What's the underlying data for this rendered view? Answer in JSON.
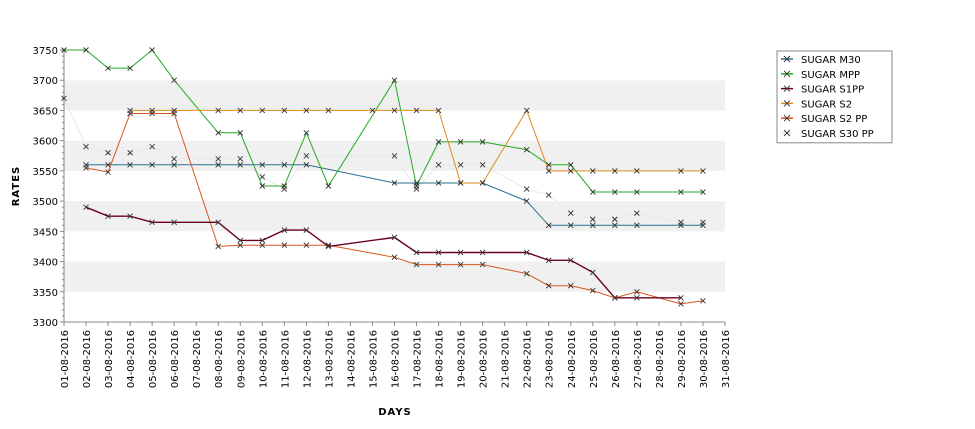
{
  "chart_data": {
    "type": "line",
    "xlabel": "DAYS",
    "ylabel": "RATES",
    "ylim": [
      3300,
      3750
    ],
    "y_ticks": [
      3300,
      3350,
      3400,
      3450,
      3500,
      3550,
      3600,
      3650,
      3700,
      3750
    ],
    "x_ticks": [
      "01-08-2016",
      "02-08-2016",
      "03-08-2016",
      "04-08-2016",
      "05-08-2016",
      "06-08-2016",
      "07-08-2016",
      "08-08-2016",
      "09-08-2016",
      "10-08-2016",
      "11-08-2016",
      "12-08-2016",
      "13-08-2016",
      "14-08-2016",
      "15-08-2016",
      "16-08-2016",
      "17-08-2016",
      "18-08-2016",
      "19-08-2016",
      "20-08-2016",
      "21-08-2016",
      "22-08-2016",
      "23-08-2016",
      "24-08-2016",
      "25-08-2016",
      "26-08-2016",
      "27-08-2016",
      "28-08-2016",
      "29-08-2016",
      "30-08-2016",
      "31-08-2016"
    ],
    "grid": "alternating horizontal bands",
    "legend": "top-right",
    "series": [
      {
        "name": "SUGAR M30",
        "color": "#2b6f8f",
        "points": [
          [
            2,
            3560
          ],
          [
            3,
            3560
          ],
          [
            4,
            3560
          ],
          [
            5,
            3560
          ],
          [
            6,
            3560
          ],
          [
            8,
            3560
          ],
          [
            9,
            3560
          ],
          [
            10,
            3560
          ],
          [
            11,
            3560
          ],
          [
            12,
            3560
          ],
          [
            16,
            3530
          ],
          [
            17,
            3530
          ],
          [
            18,
            3530
          ],
          [
            19,
            3530
          ],
          [
            20,
            3530
          ],
          [
            22,
            3500
          ],
          [
            23,
            3460
          ],
          [
            24,
            3460
          ],
          [
            25,
            3460
          ],
          [
            26,
            3460
          ],
          [
            27,
            3460
          ],
          [
            29,
            3460
          ],
          [
            30,
            3460
          ]
        ]
      },
      {
        "name": "SUGAR MPP",
        "color": "#22aa22",
        "points": [
          [
            1,
            3750
          ],
          [
            2,
            3750
          ],
          [
            3,
            3720
          ],
          [
            4,
            3720
          ],
          [
            5,
            3750
          ],
          [
            6,
            3700
          ],
          [
            8,
            3613
          ],
          [
            9,
            3613
          ],
          [
            10,
            3525
          ],
          [
            11,
            3525
          ],
          [
            12,
            3613
          ],
          [
            13,
            3525
          ],
          [
            16,
            3700
          ],
          [
            17,
            3525
          ],
          [
            18,
            3598
          ],
          [
            19,
            3598
          ],
          [
            20,
            3598
          ],
          [
            22,
            3585
          ],
          [
            23,
            3560
          ],
          [
            24,
            3560
          ],
          [
            25,
            3515
          ],
          [
            26,
            3515
          ],
          [
            27,
            3515
          ],
          [
            29,
            3515
          ],
          [
            30,
            3515
          ]
        ]
      },
      {
        "name": "SUGAR S1PP",
        "color": "#6b0020",
        "points": [
          [
            2,
            3490
          ],
          [
            3,
            3475
          ],
          [
            4,
            3475
          ],
          [
            5,
            3465
          ],
          [
            6,
            3465
          ],
          [
            8,
            3465
          ],
          [
            9,
            3435
          ],
          [
            10,
            3435
          ],
          [
            11,
            3452
          ],
          [
            12,
            3452
          ],
          [
            13,
            3425
          ],
          [
            16,
            3440
          ],
          [
            17,
            3415
          ],
          [
            18,
            3415
          ],
          [
            19,
            3415
          ],
          [
            20,
            3415
          ],
          [
            22,
            3415
          ],
          [
            23,
            3402
          ],
          [
            24,
            3402
          ],
          [
            25,
            3382
          ],
          [
            26,
            3340
          ],
          [
            27,
            3340
          ],
          [
            29,
            3340
          ]
        ]
      },
      {
        "name": "SUGAR S2",
        "color": "#e08a1e",
        "points": [
          [
            4,
            3650
          ],
          [
            5,
            3650
          ],
          [
            6,
            3650
          ],
          [
            8,
            3650
          ],
          [
            9,
            3650
          ],
          [
            10,
            3650
          ],
          [
            11,
            3650
          ],
          [
            12,
            3650
          ],
          [
            13,
            3650
          ],
          [
            15,
            3650
          ],
          [
            16,
            3650
          ],
          [
            17,
            3650
          ],
          [
            18,
            3650
          ],
          [
            19,
            3530
          ],
          [
            20,
            3530
          ],
          [
            22,
            3650
          ],
          [
            23,
            3550
          ],
          [
            24,
            3550
          ],
          [
            25,
            3550
          ],
          [
            26,
            3550
          ],
          [
            27,
            3550
          ],
          [
            29,
            3550
          ],
          [
            30,
            3550
          ]
        ]
      },
      {
        "name": "SUGAR S2 PP",
        "color": "#d9561a",
        "points": [
          [
            2,
            3555
          ],
          [
            3,
            3548
          ],
          [
            4,
            3645
          ],
          [
            5,
            3645
          ],
          [
            6,
            3645
          ],
          [
            8,
            3425
          ],
          [
            9,
            3427
          ],
          [
            10,
            3427
          ],
          [
            11,
            3427
          ],
          [
            12,
            3427
          ],
          [
            13,
            3427
          ],
          [
            16,
            3407
          ],
          [
            17,
            3395
          ],
          [
            18,
            3395
          ],
          [
            19,
            3395
          ],
          [
            20,
            3395
          ],
          [
            22,
            3380
          ],
          [
            23,
            3360
          ],
          [
            24,
            3360
          ],
          [
            25,
            3352
          ],
          [
            26,
            3340
          ],
          [
            27,
            3350
          ],
          [
            29,
            3330
          ],
          [
            30,
            3335
          ]
        ]
      },
      {
        "name": "SUGAR S30 PP",
        "color": "#e8e8e8",
        "points": [
          [
            1,
            3670
          ],
          [
            2,
            3590
          ],
          [
            3,
            3580
          ],
          [
            4,
            3580
          ],
          [
            5,
            3590
          ],
          [
            6,
            3570
          ],
          [
            8,
            3570
          ],
          [
            9,
            3570
          ],
          [
            10,
            3540
          ],
          [
            11,
            3520
          ],
          [
            12,
            3575
          ],
          [
            16,
            3575
          ],
          [
            17,
            3520
          ],
          [
            18,
            3560
          ],
          [
            19,
            3560
          ],
          [
            20,
            3560
          ],
          [
            22,
            3520
          ],
          [
            23,
            3510
          ],
          [
            24,
            3480
          ],
          [
            25,
            3470
          ],
          [
            26,
            3470
          ],
          [
            27,
            3480
          ],
          [
            29,
            3465
          ],
          [
            30,
            3465
          ]
        ]
      }
    ]
  }
}
